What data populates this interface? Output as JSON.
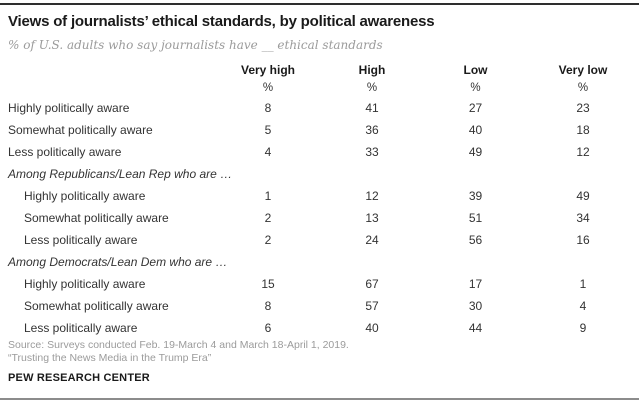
{
  "chart_data": {
    "type": "table",
    "title": "Views of journalists’ ethical standards, by political awareness",
    "subtitle": "% of U.S. adults who say journalists have __ ethical standards",
    "columns": [
      "Very high",
      "High",
      "Low",
      "Very low"
    ],
    "units": [
      "%",
      "%",
      "%",
      "%"
    ],
    "rows": [
      {
        "label": "Highly politically aware",
        "kind": "data",
        "indent": 0,
        "values": [
          8,
          41,
          27,
          23
        ]
      },
      {
        "label": "Somewhat politically aware",
        "kind": "data",
        "indent": 0,
        "values": [
          5,
          36,
          40,
          18
        ]
      },
      {
        "label": "Less politically aware",
        "kind": "data",
        "indent": 0,
        "values": [
          4,
          33,
          49,
          12
        ]
      },
      {
        "label": "Among Republicans/Lean Rep who are …",
        "kind": "section",
        "indent": 0,
        "values": []
      },
      {
        "label": "Highly politically aware",
        "kind": "data",
        "indent": 1,
        "values": [
          1,
          12,
          39,
          49
        ]
      },
      {
        "label": "Somewhat politically aware",
        "kind": "data",
        "indent": 1,
        "values": [
          2,
          13,
          51,
          34
        ]
      },
      {
        "label": "Less politically aware",
        "kind": "data",
        "indent": 1,
        "values": [
          2,
          24,
          56,
          16
        ]
      },
      {
        "label": "Among Democrats/Lean Dem who are …",
        "kind": "section",
        "indent": 0,
        "values": []
      },
      {
        "label": "Highly politically aware",
        "kind": "data",
        "indent": 1,
        "values": [
          15,
          67,
          17,
          1
        ]
      },
      {
        "label": "Somewhat politically aware",
        "kind": "data",
        "indent": 1,
        "values": [
          8,
          57,
          30,
          4
        ]
      },
      {
        "label": "Less politically aware",
        "kind": "data",
        "indent": 1,
        "values": [
          6,
          40,
          44,
          9
        ]
      }
    ],
    "layout": {
      "grid": false,
      "value_alignment": "center"
    }
  },
  "footer": {
    "source": "Source: Surveys conducted Feb. 19-March 4 and March 18-April 1, 2019.",
    "note": "“Trusting the News Media in the Trump Era”",
    "org": "PEW RESEARCH CENTER"
  },
  "colors": {
    "title_text": "#1a1a1a",
    "body_text": "#333333",
    "muted_text": "#9b9b9b",
    "top_rule": "#2e2e2e",
    "bottom_rule": "#8c8c8c",
    "background": "#ffffff"
  }
}
